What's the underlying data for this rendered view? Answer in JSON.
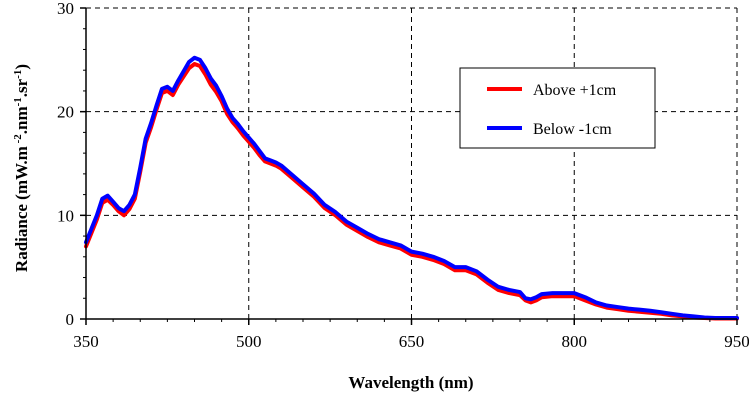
{
  "chart_data": {
    "type": "line",
    "xlabel": "Wavelength (nm)",
    "ylabel": {
      "parts": [
        {
          "text": "Radiance (mW.m",
          "sup": false
        },
        {
          "text": " -2",
          "sup": true
        },
        {
          "text": ".nm",
          "sup": false
        },
        {
          "text": "-1",
          "sup": true
        },
        {
          "text": ".sr",
          "sup": false
        },
        {
          "text": "-1",
          "sup": true
        },
        {
          "text": ")",
          "sup": false
        }
      ]
    },
    "xlim": [
      350,
      950
    ],
    "ylim": [
      0,
      30
    ],
    "x_ticks": [
      "350",
      "500",
      "650",
      "800",
      "950"
    ],
    "y_ticks": [
      "0",
      "10",
      "20",
      "30"
    ],
    "grid": true,
    "legend_position": "upper-right",
    "series": [
      {
        "name": "Above +1cm",
        "color": "#ff0000",
        "x": [
          350,
          355,
          360,
          365,
          370,
          375,
          380,
          385,
          390,
          395,
          400,
          405,
          410,
          415,
          420,
          425,
          430,
          435,
          440,
          445,
          450,
          455,
          460,
          465,
          470,
          475,
          480,
          485,
          490,
          495,
          500,
          505,
          510,
          515,
          520,
          525,
          530,
          540,
          550,
          560,
          570,
          580,
          590,
          600,
          610,
          620,
          630,
          640,
          650,
          660,
          670,
          680,
          690,
          700,
          710,
          720,
          730,
          740,
          750,
          755,
          760,
          765,
          770,
          780,
          790,
          800,
          810,
          820,
          830,
          840,
          850,
          860,
          870,
          880,
          890,
          900,
          910,
          920,
          930,
          940,
          950
        ],
        "y": [
          7.0,
          8.3,
          9.6,
          11.2,
          11.5,
          11.0,
          10.4,
          10.0,
          10.6,
          11.6,
          14.2,
          17.0,
          18.5,
          20.2,
          21.8,
          22.0,
          21.6,
          22.6,
          23.4,
          24.2,
          24.6,
          24.4,
          23.6,
          22.6,
          21.9,
          21.0,
          19.8,
          19.0,
          18.4,
          17.7,
          17.1,
          16.5,
          15.8,
          15.2,
          15.0,
          14.8,
          14.5,
          13.6,
          12.7,
          11.8,
          10.7,
          10.0,
          9.1,
          8.5,
          7.9,
          7.4,
          7.1,
          6.8,
          6.2,
          6.0,
          5.7,
          5.3,
          4.7,
          4.7,
          4.3,
          3.5,
          2.8,
          2.5,
          2.3,
          1.8,
          1.6,
          1.8,
          2.1,
          2.2,
          2.2,
          2.2,
          1.8,
          1.4,
          1.1,
          0.95,
          0.8,
          0.7,
          0.6,
          0.5,
          0.35,
          0.25,
          0.15,
          0.1,
          0.05,
          0.05,
          0.05
        ]
      },
      {
        "name": "Below -1cm",
        "color": "#0000ff",
        "x": [
          350,
          355,
          360,
          365,
          370,
          375,
          380,
          385,
          390,
          395,
          400,
          405,
          410,
          415,
          420,
          425,
          430,
          435,
          440,
          445,
          450,
          455,
          460,
          465,
          470,
          475,
          480,
          485,
          490,
          495,
          500,
          505,
          510,
          515,
          520,
          525,
          530,
          540,
          550,
          560,
          570,
          580,
          590,
          600,
          610,
          620,
          630,
          640,
          650,
          660,
          670,
          680,
          690,
          700,
          710,
          720,
          730,
          740,
          750,
          755,
          760,
          765,
          770,
          780,
          790,
          800,
          810,
          820,
          830,
          840,
          850,
          860,
          870,
          880,
          890,
          900,
          910,
          920,
          930,
          940,
          950
        ],
        "y": [
          7.4,
          8.7,
          10.0,
          11.6,
          11.9,
          11.3,
          10.7,
          10.4,
          11.0,
          12.0,
          14.6,
          17.4,
          18.9,
          20.6,
          22.2,
          22.4,
          22.0,
          23.0,
          23.9,
          24.8,
          25.2,
          25.0,
          24.2,
          23.2,
          22.5,
          21.5,
          20.3,
          19.4,
          18.8,
          18.1,
          17.5,
          16.9,
          16.2,
          15.5,
          15.3,
          15.1,
          14.8,
          13.9,
          13.0,
          12.1,
          11.0,
          10.3,
          9.4,
          8.8,
          8.2,
          7.7,
          7.4,
          7.1,
          6.5,
          6.3,
          6.0,
          5.6,
          5.0,
          5.0,
          4.6,
          3.8,
          3.1,
          2.8,
          2.6,
          2.0,
          1.9,
          2.1,
          2.4,
          2.5,
          2.5,
          2.5,
          2.1,
          1.6,
          1.3,
          1.15,
          1.0,
          0.9,
          0.8,
          0.65,
          0.5,
          0.35,
          0.25,
          0.15,
          0.1,
          0.1,
          0.1
        ]
      }
    ]
  }
}
